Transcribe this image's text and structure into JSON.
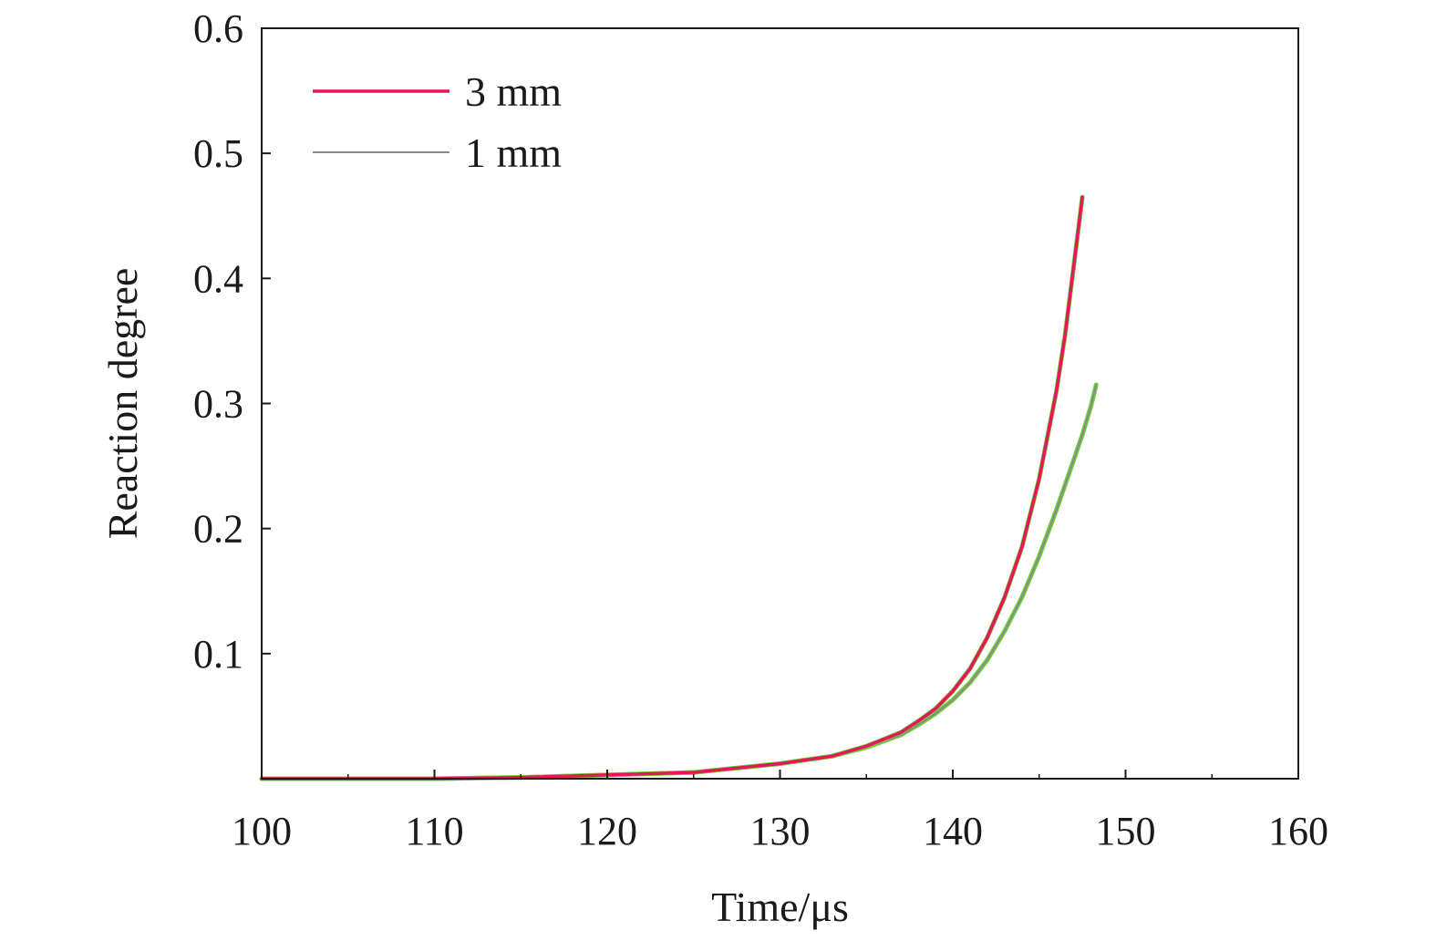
{
  "chart_data": {
    "type": "line",
    "title": "",
    "xlabel": "Time/μs",
    "ylabel": "Reaction degree",
    "xlim": [
      100,
      160
    ],
    "ylim": [
      0,
      0.6
    ],
    "x_ticks": [
      100,
      110,
      120,
      130,
      140,
      150,
      160
    ],
    "x_tick_labels": [
      "100",
      "110",
      "120",
      "130",
      "140",
      "150",
      "160"
    ],
    "y_ticks": [
      0.1,
      0.2,
      0.3,
      0.4,
      0.5,
      0.6
    ],
    "y_tick_labels": [
      "0.1",
      "0.2",
      "0.3",
      "0.4",
      "0.5",
      "0.6"
    ],
    "grid": false,
    "legend_position": "top-left",
    "series": [
      {
        "name": "3 mm",
        "color": "#e5175a",
        "x": [
          100,
          110,
          115,
          120,
          125,
          130,
          133,
          135,
          137,
          138,
          139,
          140,
          141,
          142,
          143,
          144,
          145,
          146,
          146.5,
          147,
          147.5
        ],
        "y": [
          0,
          0,
          0.001,
          0.003,
          0.005,
          0.012,
          0.018,
          0.026,
          0.037,
          0.046,
          0.056,
          0.07,
          0.088,
          0.113,
          0.145,
          0.185,
          0.24,
          0.31,
          0.355,
          0.41,
          0.465
        ]
      },
      {
        "name": "1 mm",
        "color": "#8a8a8a",
        "x": [
          100,
          110,
          115,
          120,
          125,
          130,
          133,
          135,
          137,
          138,
          139,
          140,
          141,
          142,
          143,
          144,
          145,
          146,
          147,
          147.5,
          148,
          148.3
        ],
        "y": [
          0,
          0,
          0.001,
          0.003,
          0.005,
          0.012,
          0.018,
          0.025,
          0.035,
          0.043,
          0.052,
          0.063,
          0.077,
          0.095,
          0.118,
          0.145,
          0.178,
          0.215,
          0.255,
          0.275,
          0.298,
          0.315
        ]
      }
    ],
    "overlay_color": "#6fd13a"
  }
}
